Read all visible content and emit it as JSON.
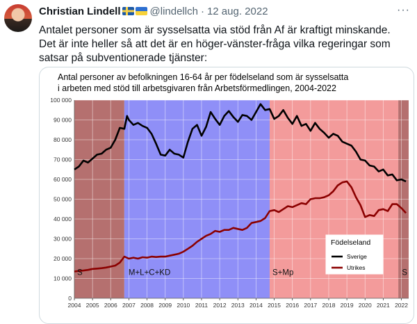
{
  "tweet": {
    "author": "Christian Lindell",
    "handle": "@lindellch",
    "separator": "·",
    "date": "12 aug. 2022",
    "more_icon": "more-icon",
    "text": "Antalet personer som är sysselsatta via stöd från Af är kraftigt minskande.\nDet är inte heller så att det är en höger-vänster-fråga vilka regeringar som satsar på subventionerade tjänster:"
  },
  "chart_data": {
    "type": "line",
    "title": "Antal personer av befolkningen 16-64 år per födelseland som är sysselsatta i arbeten med  stöd till arbetsgivaren från Arbetsförmedlingen, 2004-2022",
    "title_lines": [
      "Antal personer av befolkningen 16-64 år per födelseland som är sysselsatta",
      "i arbeten med  stöd till arbetsgivaren från Arbetsförmedlingen, 2004-2022"
    ],
    "xlim": [
      2004,
      2022.4
    ],
    "ylim": [
      0,
      100000
    ],
    "y_ticks": [
      0,
      10000,
      20000,
      30000,
      40000,
      50000,
      60000,
      70000,
      80000,
      90000,
      100000
    ],
    "y_tick_labels": [
      "0",
      "10 000",
      "20 000",
      "30 000",
      "40 000",
      "50 000",
      "60 000",
      "70 000",
      "80 000",
      "90 000",
      "100 000"
    ],
    "x_ticks": [
      2004,
      2005,
      2006,
      2007,
      2008,
      2009,
      2010,
      2011,
      2012,
      2013,
      2014,
      2015,
      2016,
      2017,
      2018,
      2019,
      2020,
      2021,
      2022
    ],
    "x_tick_labels": [
      "2004",
      "2005",
      "2006",
      "2007",
      "2008",
      "2009",
      "2010",
      "2011",
      "2012",
      "2013",
      "2014",
      "2015",
      "2016",
      "2017",
      "2018",
      "2019",
      "2020",
      "2021",
      "2022"
    ],
    "grid": true,
    "legend": {
      "title": "Födelseland",
      "placement": "bottom-right"
    },
    "periods": [
      {
        "label": "S",
        "start": 2004,
        "end": 2006.75,
        "color": "#b5706f"
      },
      {
        "label": "M+L+C+KD",
        "start": 2006.75,
        "end": 2014.75,
        "color": "#8f8ff7"
      },
      {
        "label": "S+Mp",
        "start": 2014.75,
        "end": 2021.83,
        "color": "#f39b9b"
      },
      {
        "label": "S",
        "start": 2021.83,
        "end": 2022.4,
        "color": "#b5706f"
      }
    ],
    "series": [
      {
        "name": "Sverige",
        "color": "#000000",
        "x": [
          2004,
          2004.25,
          2004.5,
          2004.75,
          2005,
          2005.25,
          2005.5,
          2005.75,
          2006,
          2006.25,
          2006.5,
          2006.75,
          2006.9,
          2007,
          2007.25,
          2007.5,
          2007.75,
          2008,
          2008.25,
          2008.5,
          2008.75,
          2009,
          2009.25,
          2009.5,
          2009.75,
          2010,
          2010.25,
          2010.5,
          2010.75,
          2011,
          2011.25,
          2011.5,
          2011.75,
          2012,
          2012.25,
          2012.5,
          2012.75,
          2013,
          2013.25,
          2013.5,
          2013.75,
          2014,
          2014.25,
          2014.5,
          2014.75,
          2015,
          2015.25,
          2015.5,
          2015.75,
          2016,
          2016.25,
          2016.5,
          2016.75,
          2017,
          2017.25,
          2017.5,
          2017.75,
          2018,
          2018.25,
          2018.5,
          2018.75,
          2019,
          2019.25,
          2019.5,
          2019.75,
          2020,
          2020.25,
          2020.5,
          2020.75,
          2021,
          2021.25,
          2021.5,
          2021.75,
          2022,
          2022.25
        ],
        "y": [
          65000,
          66500,
          69500,
          68500,
          70500,
          72500,
          73000,
          75000,
          76000,
          80000,
          86000,
          85500,
          92000,
          90000,
          87500,
          88500,
          87000,
          86000,
          83000,
          78000,
          72500,
          72000,
          75000,
          73000,
          72500,
          71000,
          79000,
          85500,
          87500,
          82000,
          86500,
          94000,
          90500,
          87500,
          92000,
          94500,
          91500,
          89000,
          92500,
          92000,
          90000,
          94000,
          98000,
          95000,
          95500,
          90500,
          92000,
          95000,
          91000,
          88000,
          92000,
          87000,
          88000,
          84500,
          88500,
          85500,
          83500,
          81000,
          83000,
          82000,
          79000,
          78000,
          77000,
          74000,
          70000,
          69500,
          67000,
          66500,
          64000,
          65000,
          62000,
          62500,
          59500,
          60000,
          59000
        ]
      },
      {
        "name": "Utrikes",
        "color": "#8b0000",
        "x": [
          2004,
          2004.25,
          2004.5,
          2004.75,
          2005,
          2005.25,
          2005.5,
          2005.75,
          2006,
          2006.25,
          2006.5,
          2006.75,
          2007,
          2007.25,
          2007.5,
          2007.75,
          2008,
          2008.25,
          2008.5,
          2008.75,
          2009,
          2009.25,
          2009.5,
          2009.75,
          2010,
          2010.25,
          2010.5,
          2010.75,
          2011,
          2011.25,
          2011.5,
          2011.75,
          2012,
          2012.25,
          2012.5,
          2012.75,
          2013,
          2013.25,
          2013.5,
          2013.75,
          2014,
          2014.25,
          2014.5,
          2014.75,
          2015,
          2015.25,
          2015.5,
          2015.75,
          2016,
          2016.25,
          2016.5,
          2016.75,
          2017,
          2017.25,
          2017.5,
          2017.75,
          2018,
          2018.25,
          2018.5,
          2018.75,
          2019,
          2019.25,
          2019.5,
          2019.75,
          2020,
          2020.25,
          2020.5,
          2020.75,
          2021,
          2021.25,
          2021.5,
          2021.75,
          2022,
          2022.25
        ],
        "y": [
          13500,
          13800,
          14000,
          14300,
          14800,
          15000,
          15200,
          15500,
          16000,
          16500,
          18000,
          21000,
          20000,
          20500,
          20000,
          20700,
          20500,
          21000,
          20800,
          21000,
          21000,
          21500,
          22000,
          22500,
          23500,
          25000,
          26500,
          28500,
          30000,
          31500,
          32500,
          34000,
          33500,
          34500,
          34500,
          35500,
          35000,
          34500,
          35500,
          38000,
          38500,
          39000,
          40500,
          44000,
          44500,
          43500,
          45000,
          46500,
          46000,
          47000,
          48000,
          47500,
          50000,
          50500,
          50500,
          51000,
          52000,
          54000,
          57000,
          58500,
          59000,
          56000,
          51000,
          47000,
          41000,
          42000,
          41500,
          44500,
          45000,
          44000,
          47500,
          47500,
          45500,
          43000
        ]
      }
    ]
  }
}
